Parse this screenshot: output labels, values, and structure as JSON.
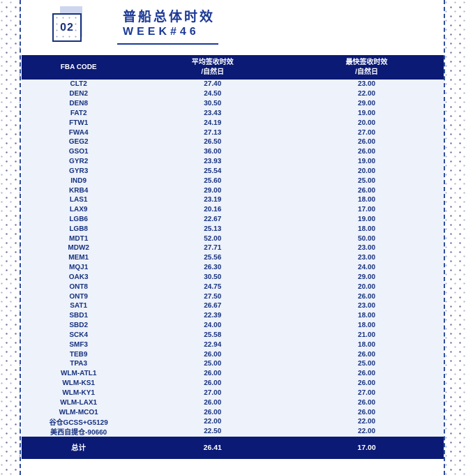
{
  "header": {
    "badge": "02",
    "title": "普船总体时效",
    "subtitle": "WEEK#46"
  },
  "colors": {
    "navy": "#0b1a74",
    "row_background": "#edf2fb",
    "row_text": "#17317e",
    "title_blue": "#1c3a96",
    "accent_lavender": "#cdd6ee",
    "dashed_rail": "#2e4d9c"
  },
  "chart_data": {
    "type": "table",
    "title": "普船总体时效 WEEK#46",
    "columns": [
      {
        "label": "FBA CODE",
        "sub": ""
      },
      {
        "label": "平均签收时效",
        "sub": "/自然日"
      },
      {
        "label": "最快签收时效",
        "sub": "/自然日"
      }
    ],
    "rows": [
      [
        "CLT2",
        "27.40",
        "23.00"
      ],
      [
        "DEN2",
        "24.50",
        "22.00"
      ],
      [
        "DEN8",
        "30.50",
        "29.00"
      ],
      [
        "FAT2",
        "23.43",
        "19.00"
      ],
      [
        "FTW1",
        "24.19",
        "20.00"
      ],
      [
        "FWA4",
        "27.13",
        "27.00"
      ],
      [
        "GEG2",
        "26.50",
        "26.00"
      ],
      [
        "GSO1",
        "36.00",
        "26.00"
      ],
      [
        "GYR2",
        "23.93",
        "19.00"
      ],
      [
        "GYR3",
        "25.54",
        "20.00"
      ],
      [
        "IND9",
        "25.60",
        "25.00"
      ],
      [
        "KRB4",
        "29.00",
        "26.00"
      ],
      [
        "LAS1",
        "23.19",
        "18.00"
      ],
      [
        "LAX9",
        "20.16",
        "17.00"
      ],
      [
        "LGB6",
        "22.67",
        "19.00"
      ],
      [
        "LGB8",
        "25.13",
        "18.00"
      ],
      [
        "MDT1",
        "52.00",
        "50.00"
      ],
      [
        "MDW2",
        "27.71",
        "23.00"
      ],
      [
        "MEM1",
        "25.56",
        "23.00"
      ],
      [
        "MQJ1",
        "26.30",
        "24.00"
      ],
      [
        "OAK3",
        "30.50",
        "29.00"
      ],
      [
        "ONT8",
        "24.75",
        "20.00"
      ],
      [
        "ONT9",
        "27.50",
        "26.00"
      ],
      [
        "SAT1",
        "26.67",
        "23.00"
      ],
      [
        "SBD1",
        "22.39",
        "18.00"
      ],
      [
        "SBD2",
        "24.00",
        "18.00"
      ],
      [
        "SCK4",
        "25.58",
        "21.00"
      ],
      [
        "SMF3",
        "22.94",
        "18.00"
      ],
      [
        "TEB9",
        "26.00",
        "26.00"
      ],
      [
        "TPA3",
        "25.00",
        "25.00"
      ],
      [
        "WLM-ATL1",
        "26.00",
        "26.00"
      ],
      [
        "WLM-KS1",
        "26.00",
        "26.00"
      ],
      [
        "WLM-KY1",
        "27.00",
        "27.00"
      ],
      [
        "WLM-LAX1",
        "26.00",
        "26.00"
      ],
      [
        "WLM-MCO1",
        "26.00",
        "26.00"
      ],
      [
        "谷仓GCSS+G5129",
        "22.00",
        "22.00"
      ],
      [
        "美西自提仓-90660",
        "22.50",
        "22.00"
      ]
    ],
    "footer": [
      "总计",
      "26.41",
      "17.00"
    ]
  }
}
